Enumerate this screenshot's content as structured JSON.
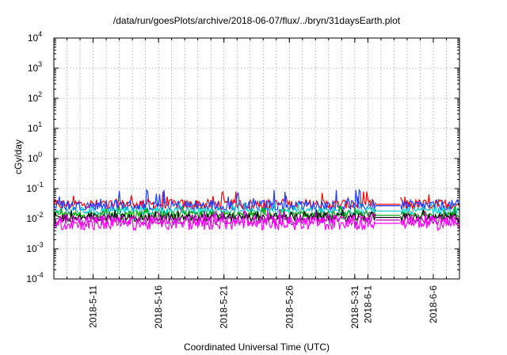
{
  "chart_data": {
    "type": "line",
    "title": "/data/run/goesPlots/archive/2018-06-07/flux/../bryn/31daysEarth.plot",
    "xlabel": "Coordinated Universal Time (UTC)",
    "ylabel": "cGy/day",
    "yscale": "log",
    "ylim": [
      0.0001,
      10000
    ],
    "xlim": [
      "2018-05-08",
      "2018-06-08"
    ],
    "y_ticks": [
      {
        "base": "10",
        "exp": "-4"
      },
      {
        "base": "10",
        "exp": "-3"
      },
      {
        "base": "10",
        "exp": "-2"
      },
      {
        "base": "10",
        "exp": "-1"
      },
      {
        "base": "10",
        "exp": "0"
      },
      {
        "base": "10",
        "exp": "1"
      },
      {
        "base": "10",
        "exp": "2"
      },
      {
        "base": "10",
        "exp": "3"
      },
      {
        "base": "10",
        "exp": "4"
      }
    ],
    "x_ticks": [
      {
        "date": "2018-05-11",
        "label": "2018-5-11"
      },
      {
        "date": "2018-05-16",
        "label": "2018-5-16"
      },
      {
        "date": "2018-05-21",
        "label": "2018-5-21"
      },
      {
        "date": "2018-05-26",
        "label": "2018-5-26"
      },
      {
        "date": "2018-05-31",
        "label": "2018-5-31"
      },
      {
        "date": "2018-06-01",
        "label": "2018-6-1"
      },
      {
        "date": "2018-06-06",
        "label": "2018-6-6"
      }
    ],
    "grid": true,
    "data_gap": [
      "2018-06-01",
      "2018-06-03"
    ],
    "series": [
      {
        "color": "#ff0000",
        "typical_value": 0.03,
        "spread": [
          0.022,
          0.08
        ]
      },
      {
        "color": "#1f3fff",
        "typical_value": 0.027,
        "spread": [
          0.02,
          0.09
        ]
      },
      {
        "color": "#00c8c8",
        "typical_value": 0.018,
        "spread": [
          0.013,
          0.035
        ]
      },
      {
        "color": "#00a000",
        "typical_value": 0.013,
        "spread": [
          0.009,
          0.025
        ]
      },
      {
        "color": "#000000",
        "typical_value": 0.011,
        "spread": [
          0.007,
          0.02
        ]
      },
      {
        "color": "#c000c0",
        "typical_value": 0.009,
        "spread": [
          0.005,
          0.018
        ]
      },
      {
        "color": "#ff00ff",
        "typical_value": 0.007,
        "spread": [
          0.0035,
          0.02
        ]
      }
    ]
  }
}
